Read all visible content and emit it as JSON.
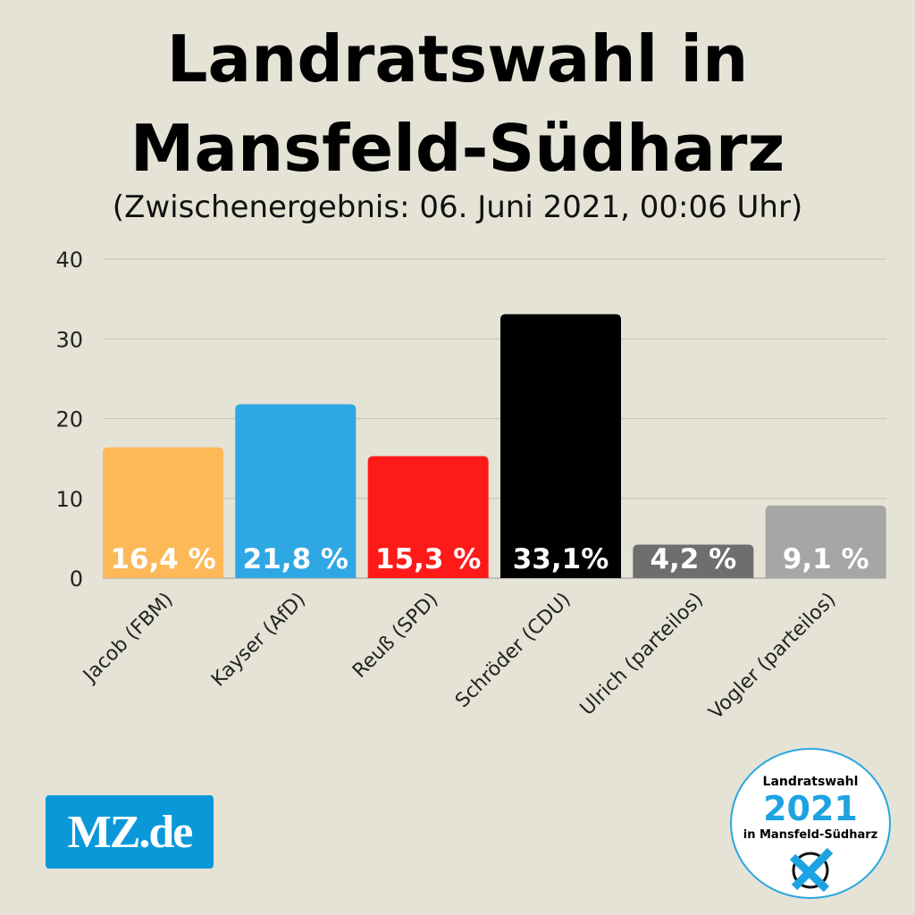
{
  "header": {
    "title_line1": "Landratswahl in",
    "title_line2": "Mansfeld-Südharz",
    "subtitle": "(Zwischenergebnis: 06. Juni 2021, 00:06 Uhr)"
  },
  "chart_data": {
    "type": "bar",
    "categories": [
      "Jacob (FBM)",
      "Kayser (AfD)",
      "Reuß (SPD)",
      "Schröder (CDU)",
      "Ulrich (parteilos)",
      "Vogler (parteilos)"
    ],
    "values": [
      16.4,
      21.8,
      15.3,
      33.1,
      4.2,
      9.1
    ],
    "data_labels": [
      "16,4 %",
      "21,8 %",
      "15,3 %",
      "33,1%",
      "4,2 %",
      "9,1 %"
    ],
    "colors": [
      "#fdb958",
      "#2ea7e3",
      "#ff1a1a",
      "#000000",
      "#6e6e6e",
      "#a6a6a6"
    ],
    "ylim": [
      0,
      40
    ],
    "yticks": [
      "0",
      "10",
      "20",
      "30",
      "40"
    ],
    "grid": true,
    "xlabel": "",
    "ylabel": ""
  },
  "logo": {
    "text": "MZ.de",
    "color": "#0a98d9"
  },
  "badge": {
    "line1": "Landratswahl",
    "line2": "2021",
    "line3": "in Mansfeld-Südharz",
    "icon": "ballot-cross-icon"
  }
}
